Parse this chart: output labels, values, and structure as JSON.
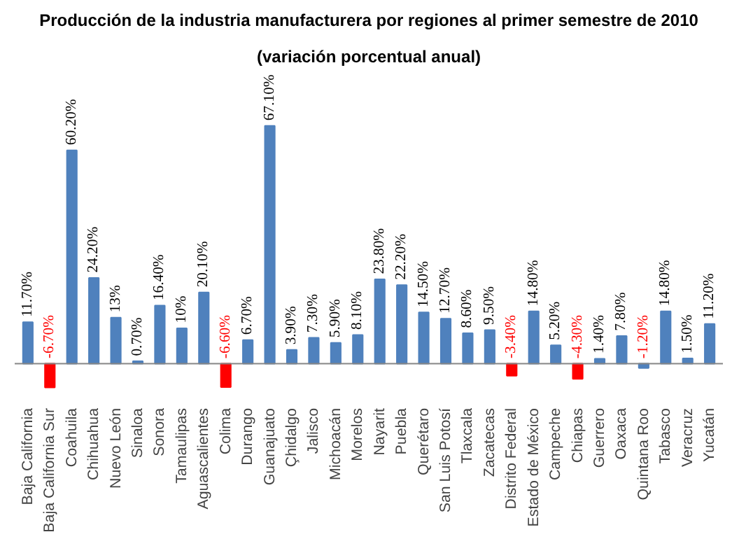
{
  "chart_data": {
    "type": "bar",
    "title": "Producción de la industria manufacturera por regiones al primer semestre de 2010",
    "subtitle": "(variación porcentual anual)",
    "categories": [
      "Baja California",
      "Baja California Sur",
      "Coahuila",
      "Chihuahua",
      "Nuevo León",
      "Sinaloa",
      "Sonora",
      "Tamaulipas",
      "Aguascalientes",
      "Colima",
      "Durango",
      "Guanajuato",
      "Çhidalgo",
      "Jalisco",
      "Michoacán",
      "Morelos",
      "Nayarit",
      "Puebla",
      "Querétaro",
      "San Luis Potosí",
      "Tlaxcala",
      "Zacatecas",
      "Distrito Federal",
      "Estado de México",
      "Campeche",
      "Chiapas",
      "Guerrero",
      "Oaxaca",
      "Quintana Roo",
      "Tabasco",
      "Veracruz",
      "Yucatán"
    ],
    "values": [
      11.7,
      -6.7,
      60.2,
      24.2,
      13,
      0.7,
      16.4,
      10,
      20.1,
      -6.6,
      6.7,
      67.1,
      3.9,
      7.3,
      5.9,
      8.1,
      23.8,
      22.2,
      14.5,
      12.7,
      8.6,
      9.5,
      -3.4,
      14.8,
      5.2,
      -4.3,
      1.4,
      7.8,
      -1.2,
      14.8,
      1.5,
      11.2
    ],
    "value_labels": [
      "11.70%",
      "-6.70%",
      "60.20%",
      "24.20%",
      "13%",
      "0.70%",
      "16.40%",
      "10%",
      "20.10%",
      "-6.60%",
      "6.70%",
      "67.10%",
      "3.90%",
      "7.30%",
      "5.90%",
      "8.10%",
      "23.80%",
      "22.20%",
      "14.50%",
      "12.70%",
      "8.60%",
      "9.50%",
      "-3.40%",
      "14.80%",
      "5.20%",
      "-4.30%",
      "1.40%",
      "7.80%",
      "-1.20%",
      "14.80%",
      "1.50%",
      "11.20%"
    ],
    "colors": [
      "#4f81bd",
      "#ff0000",
      "#4f81bd",
      "#4f81bd",
      "#4f81bd",
      "#4f81bd",
      "#4f81bd",
      "#4f81bd",
      "#4f81bd",
      "#ff0000",
      "#4f81bd",
      "#4f81bd",
      "#4f81bd",
      "#4f81bd",
      "#4f81bd",
      "#4f81bd",
      "#4f81bd",
      "#4f81bd",
      "#4f81bd",
      "#4f81bd",
      "#4f81bd",
      "#4f81bd",
      "#ff0000",
      "#4f81bd",
      "#4f81bd",
      "#ff0000",
      "#4f81bd",
      "#4f81bd",
      "#4f81bd",
      "#4f81bd",
      "#4f81bd",
      "#4f81bd"
    ],
    "grid": false
  }
}
